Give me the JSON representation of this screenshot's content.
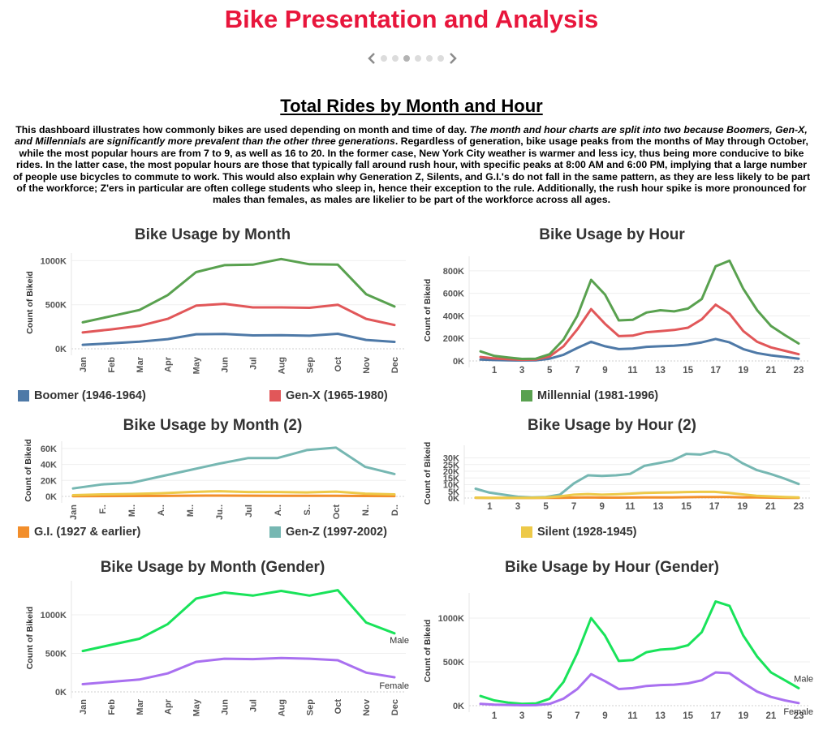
{
  "header": {
    "title": "Bike Presentation and Analysis",
    "section_title": "Total Rides by Month and Hour",
    "description_plain_1": "This dashboard illustrates how commonly bikes are used depending on month and time of day. ",
    "description_italic": "The month and hour charts are split into two because Boomers, Gen-X, and Millennials are significantly more prevalent than the other three generations",
    "description_plain_2": ". Regardless of generation, bike usage peaks from the months of May through October, while the most popular hours are from 7 to 9, as well as 16 to 20. In the former case, New York City weather is warmer and less icy, thus being more conducive to bike rides. In the latter case, the most popular hours are those that typically fall around rush hour, with specific peaks at 8:00 AM and 6:00 PM, implying that a large number of people use bicycles to commute to work. This would also explain why Generation Z, Silents, and G.I.'s do not fall in the same pattern, as they are less likely to be part of the workforce; Z'ers in particular are often college students who sleep in, hence their exception to the rule. Additionally, the rush hour spike is more pronounced for males than females, as males are likelier to be part of the workforce across all ages."
  },
  "pager": {
    "count": 6,
    "active": 3,
    "prev_icon": "chevron-left-icon",
    "next_icon": "chevron-right-icon"
  },
  "legends": {
    "boomer": {
      "label": "Boomer (1946-1964)",
      "color": "#4e79a7"
    },
    "genx": {
      "label": "Gen-X (1965-1980)",
      "color": "#e15759"
    },
    "millennial": {
      "label": "Millennial (1981-1996)",
      "color": "#59a14f"
    },
    "gi": {
      "label": "G.I. (1927 & earlier)",
      "color": "#f28e2b"
    },
    "genz": {
      "label": "Gen-Z (1997-2002)",
      "color": "#76b7b2"
    },
    "silent": {
      "label": "Silent (1928-1945)",
      "color": "#edc948"
    }
  },
  "chart_data": [
    {
      "id": "month",
      "type": "line",
      "title": "Bike Usage by Month",
      "ylabel": "Count of Bikeid",
      "x": [
        "Jan",
        "Feb",
        "Mar",
        "Apr",
        "May",
        "Jun",
        "Jul",
        "Aug",
        "Sep",
        "Oct",
        "Nov",
        "Dec"
      ],
      "xticks": [
        "Jan",
        "Feb",
        "Mar",
        "Apr",
        "May",
        "Jun",
        "Jul",
        "Aug",
        "Sep",
        "Oct",
        "Nov",
        "Dec"
      ],
      "ylim": [
        0,
        1050000
      ],
      "yticks": [
        0,
        500000,
        1000000
      ],
      "ytick_labels": [
        "0K",
        "500K",
        "1000K"
      ],
      "series": [
        {
          "name": "Boomer (1946-1964)",
          "color": "#4e79a7",
          "values": [
            45000,
            62000,
            80000,
            110000,
            165000,
            168000,
            152000,
            155000,
            148000,
            170000,
            100000,
            78000
          ]
        },
        {
          "name": "Gen-X (1965-1980)",
          "color": "#e15759",
          "values": [
            185000,
            220000,
            260000,
            340000,
            490000,
            510000,
            470000,
            470000,
            465000,
            500000,
            340000,
            270000
          ]
        },
        {
          "name": "Millennial (1981-1996)",
          "color": "#59a14f",
          "values": [
            300000,
            370000,
            440000,
            610000,
            870000,
            950000,
            955000,
            1020000,
            960000,
            955000,
            620000,
            480000
          ]
        }
      ]
    },
    {
      "id": "hour",
      "type": "line",
      "title": "Bike Usage by Hour",
      "ylabel": "Count of Bikeid",
      "x": [
        0,
        1,
        2,
        3,
        4,
        5,
        6,
        7,
        8,
        9,
        10,
        11,
        12,
        13,
        14,
        15,
        16,
        17,
        18,
        19,
        20,
        21,
        22,
        23
      ],
      "xticks": [
        1,
        3,
        5,
        7,
        9,
        11,
        13,
        15,
        17,
        19,
        21,
        23
      ],
      "ylim": [
        0,
        900000
      ],
      "yticks": [
        0,
        200000,
        400000,
        600000,
        800000
      ],
      "ytick_labels": [
        "0K",
        "200K",
        "400K",
        "600K",
        "800K"
      ],
      "series": [
        {
          "name": "Boomer (1946-1964)",
          "color": "#4e79a7",
          "values": [
            12000,
            8000,
            5000,
            4000,
            6000,
            20000,
            55000,
            115000,
            170000,
            130000,
            105000,
            110000,
            125000,
            130000,
            135000,
            145000,
            165000,
            195000,
            165000,
            105000,
            70000,
            50000,
            35000,
            20000
          ]
        },
        {
          "name": "Gen-X (1965-1980)",
          "color": "#e15759",
          "values": [
            35000,
            22000,
            15000,
            10000,
            12000,
            40000,
            130000,
            280000,
            460000,
            330000,
            220000,
            225000,
            255000,
            265000,
            275000,
            295000,
            370000,
            500000,
            420000,
            265000,
            170000,
            120000,
            90000,
            60000
          ]
        },
        {
          "name": "Millennial (1981-1996)",
          "color": "#59a14f",
          "values": [
            85000,
            45000,
            30000,
            18000,
            20000,
            60000,
            190000,
            400000,
            720000,
            590000,
            360000,
            365000,
            430000,
            450000,
            440000,
            465000,
            550000,
            840000,
            890000,
            640000,
            450000,
            310000,
            230000,
            155000
          ]
        }
      ]
    },
    {
      "id": "month2",
      "type": "line",
      "title": "Bike Usage by Month (2)",
      "ylabel": "Count of Bikeid",
      "x": [
        "Jan",
        "Feb",
        "Mar",
        "Apr",
        "May",
        "Jun",
        "Jul",
        "Aug",
        "Sep",
        "Oct",
        "Nov",
        "Dec"
      ],
      "xticks": [
        "Jan",
        "F..",
        "M..",
        "A..",
        "M..",
        "Ju..",
        "Jul",
        "A..",
        "S..",
        "Oct",
        "N..",
        "D.."
      ],
      "ylim": [
        0,
        65000
      ],
      "yticks": [
        0,
        20000,
        40000,
        60000
      ],
      "ytick_labels": [
        "0K",
        "20K",
        "40K",
        "60K"
      ],
      "series": [
        {
          "name": "G.I. (1927 & earlier)",
          "color": "#f28e2b",
          "values": [
            300,
            400,
            500,
            600,
            900,
            1000,
            900,
            800,
            700,
            700,
            500,
            400
          ]
        },
        {
          "name": "Gen-Z (1997-2002)",
          "color": "#76b7b2",
          "values": [
            10000,
            15000,
            17000,
            25000,
            33000,
            41000,
            48000,
            48000,
            58000,
            61000,
            37000,
            28000
          ]
        },
        {
          "name": "Silent (1928-1945)",
          "color": "#edc948",
          "values": [
            1500,
            2500,
            3000,
            4000,
            5500,
            6500,
            5500,
            5500,
            5000,
            6000,
            3500,
            2500
          ]
        }
      ]
    },
    {
      "id": "hour2",
      "type": "line",
      "title": "Bike Usage by Hour (2)",
      "ylabel": "Count of Bikeid",
      "x": [
        0,
        1,
        2,
        3,
        4,
        5,
        6,
        7,
        8,
        9,
        10,
        11,
        12,
        13,
        14,
        15,
        16,
        17,
        18,
        19,
        20,
        21,
        22,
        23
      ],
      "xticks": [
        1,
        3,
        5,
        7,
        9,
        11,
        13,
        15,
        17,
        19,
        21,
        23
      ],
      "ylim": [
        0,
        37000
      ],
      "yticks": [
        0,
        5000,
        10000,
        15000,
        20000,
        25000,
        30000
      ],
      "ytick_labels": [
        "0K",
        "5K",
        "10K",
        "15K",
        "20K",
        "25K",
        "30K"
      ],
      "series": [
        {
          "name": "G.I. (1927 & earlier)",
          "color": "#f28e2b",
          "values": [
            100,
            80,
            60,
            50,
            60,
            100,
            200,
            300,
            400,
            300,
            300,
            350,
            400,
            450,
            500,
            600,
            700,
            800,
            700,
            500,
            400,
            300,
            200,
            150
          ]
        },
        {
          "name": "Gen-Z (1997-2002)",
          "color": "#76b7b2",
          "values": [
            7000,
            4000,
            2500,
            1000,
            500,
            800,
            2500,
            11000,
            17000,
            16500,
            17000,
            18000,
            24000,
            26000,
            28000,
            33000,
            32500,
            35000,
            32500,
            26000,
            21000,
            18000,
            14500,
            10500
          ]
        },
        {
          "name": "Silent (1928-1945)",
          "color": "#edc948",
          "values": [
            300,
            200,
            150,
            100,
            150,
            400,
            1200,
            2500,
            3000,
            2500,
            2800,
            3300,
            3800,
            4000,
            4200,
            4500,
            4600,
            4600,
            3800,
            2700,
            1700,
            1200,
            800,
            500
          ]
        }
      ]
    },
    {
      "id": "month_gender",
      "type": "line",
      "title": "Bike Usage by Month (Gender)",
      "ylabel": "Count of Bikeid",
      "x": [
        "Jan",
        "Feb",
        "Mar",
        "Apr",
        "May",
        "Jun",
        "Jul",
        "Aug",
        "Sep",
        "Oct",
        "Nov",
        "Dec"
      ],
      "xticks": [
        "Jan",
        "Feb",
        "Mar",
        "Apr",
        "May",
        "Jun",
        "Jul",
        "Aug",
        "Sep",
        "Oct",
        "Nov",
        "Dec"
      ],
      "ylim": [
        0,
        1400000
      ],
      "yticks": [
        0,
        500000,
        1000000
      ],
      "ytick_labels": [
        "0K",
        "500K",
        "1000K"
      ],
      "series": [
        {
          "name": "Male",
          "color": "#19e35a",
          "values": [
            530000,
            610000,
            690000,
            880000,
            1210000,
            1290000,
            1250000,
            1310000,
            1250000,
            1320000,
            900000,
            760000
          ]
        },
        {
          "name": "Female",
          "color": "#a970f0",
          "values": [
            100000,
            130000,
            160000,
            240000,
            390000,
            430000,
            425000,
            440000,
            430000,
            410000,
            250000,
            190000
          ]
        }
      ]
    },
    {
      "id": "hour_gender",
      "type": "line",
      "title": "Bike Usage by Hour (Gender)",
      "ylabel": "Count of Bikeid",
      "x": [
        0,
        1,
        2,
        3,
        4,
        5,
        6,
        7,
        8,
        9,
        10,
        11,
        12,
        13,
        14,
        15,
        16,
        17,
        18,
        19,
        20,
        21,
        22,
        23
      ],
      "xticks": [
        1,
        3,
        5,
        7,
        9,
        11,
        13,
        15,
        17,
        19,
        21,
        23
      ],
      "ylim": [
        0,
        1250000
      ],
      "yticks": [
        0,
        500000,
        1000000
      ],
      "ytick_labels": [
        "0K",
        "500K",
        "1000K"
      ],
      "series": [
        {
          "name": "Male",
          "color": "#19e35a",
          "values": [
            110000,
            60000,
            35000,
            20000,
            25000,
            80000,
            270000,
            600000,
            1000000,
            800000,
            510000,
            520000,
            610000,
            640000,
            650000,
            690000,
            840000,
            1190000,
            1140000,
            800000,
            560000,
            380000,
            290000,
            200000
          ]
        },
        {
          "name": "Female",
          "color": "#a970f0",
          "values": [
            20000,
            12000,
            8000,
            5000,
            6000,
            20000,
            80000,
            190000,
            360000,
            280000,
            190000,
            200000,
            225000,
            235000,
            240000,
            255000,
            290000,
            380000,
            370000,
            260000,
            160000,
            100000,
            60000,
            30000
          ]
        }
      ]
    }
  ]
}
